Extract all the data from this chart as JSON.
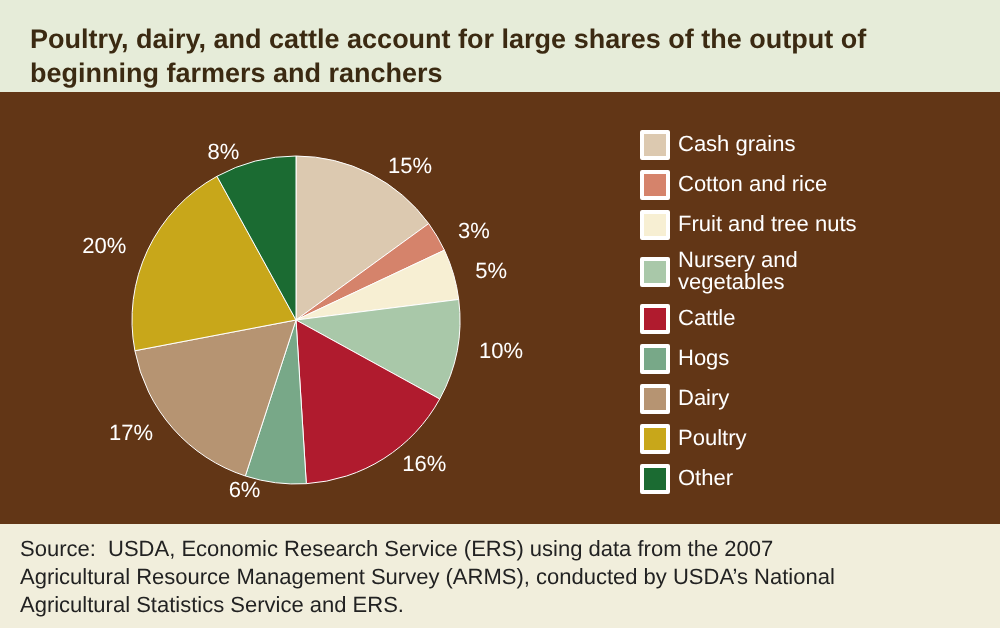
{
  "chart_data": {
    "type": "pie",
    "title": "Poultry, dairy, and cattle account for large shares of the output of beginning farmers and ranchers",
    "categories": [
      "Cash grains",
      "Cotton and rice",
      "Fruit and tree nuts",
      "Nursery and vegetables",
      "Cattle",
      "Hogs",
      "Dairy",
      "Poultry",
      "Other"
    ],
    "values": [
      15,
      3,
      5,
      10,
      16,
      6,
      17,
      20,
      8
    ],
    "colors": [
      "#dcc9b0",
      "#d5836b",
      "#f7efd3",
      "#a9c8a9",
      "#b01b2e",
      "#78a888",
      "#b69472",
      "#c8a71a",
      "#1b6b32"
    ],
    "value_labels": [
      "15%",
      "3%",
      "5%",
      "10%",
      "16%",
      "6%",
      "17%",
      "20%",
      "8%"
    ],
    "legend": "right",
    "annotations": [
      "Source:  USDA, Economic Research Service (ERS) using data from the 2007 Agricultural Resource Management Survey (ARMS), conducted by USDA’s National Agricultural Statistics Service and ERS."
    ]
  }
}
